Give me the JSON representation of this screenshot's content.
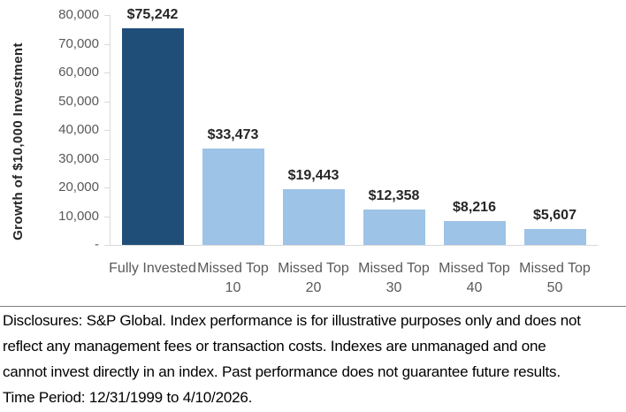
{
  "chart_data": {
    "type": "bar",
    "title": "",
    "categories": [
      "Fully Invested",
      "Missed Top 10",
      "Missed Top 20",
      "Missed Top 30",
      "Missed Top 40",
      "Missed Top 50"
    ],
    "values": [
      75242,
      33473,
      19443,
      12358,
      8216,
      5607
    ],
    "value_labels": [
      "$75,242",
      "$33,473",
      "$19,443",
      "$12,358",
      "$8,216",
      "$5,607"
    ],
    "colors": [
      "#1F4E79",
      "#9DC3E6",
      "#9DC3E6",
      "#9DC3E6",
      "#9DC3E6",
      "#9DC3E6"
    ],
    "xlabel": "",
    "ylabel": "Growth of $10,000 Investment",
    "ylim": [
      0,
      80000
    ],
    "yticks": [
      {
        "value": 80000,
        "label": "80,000"
      },
      {
        "value": 70000,
        "label": "70,000"
      },
      {
        "value": 60000,
        "label": "60,000"
      },
      {
        "value": 50000,
        "label": "50,000"
      },
      {
        "value": 40000,
        "label": "40,000"
      },
      {
        "value": 30000,
        "label": "30,000"
      },
      {
        "value": 20000,
        "label": "20,000"
      },
      {
        "value": 10000,
        "label": "10,000"
      },
      {
        "value": 0,
        "label": "-"
      }
    ],
    "grid": false,
    "legend": false,
    "axis_color": "#D9D9D9",
    "tick_label_color": "#595959",
    "value_label_color": "#262626"
  },
  "disclosure": {
    "text": "Disclosures: S&P Global. Index performance is for illustrative purposes only and does not reflect any management fees or transaction costs. Indexes are unmanaged and one cannot invest directly in an index. Past performance does not guarantee future results. Time Period: 12/31/1999 to 4/10/2026."
  }
}
